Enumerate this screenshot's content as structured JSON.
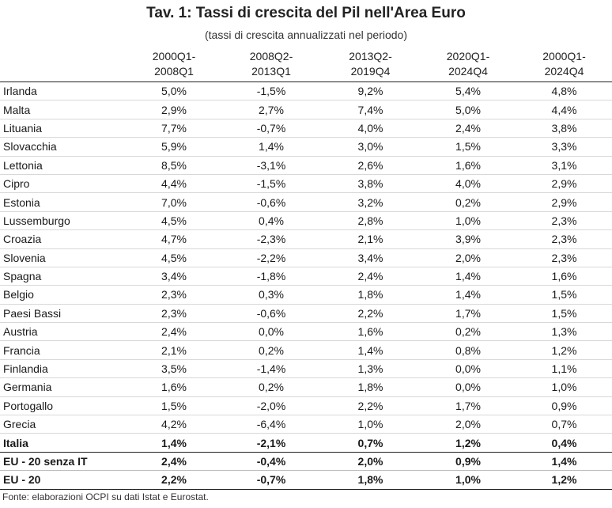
{
  "title": "Tav. 1: Tassi di crescita del Pil nell'Area Euro",
  "subtitle": "(tassi di crescita annualizzati nel periodo)",
  "columns": [
    "",
    "2000Q1-\n2008Q1",
    "2008Q2-\n2013Q1",
    "2013Q2-\n2019Q4",
    "2020Q1-\n2024Q4",
    "2000Q1-\n2024Q4"
  ],
  "rows": [
    {
      "country": "Irlanda",
      "values": [
        "5,0%",
        "-1,5%",
        "9,2%",
        "5,4%",
        "4,8%"
      ]
    },
    {
      "country": "Malta",
      "values": [
        "2,9%",
        "2,7%",
        "7,4%",
        "5,0%",
        "4,4%"
      ]
    },
    {
      "country": "Lituania",
      "values": [
        "7,7%",
        "-0,7%",
        "4,0%",
        "2,4%",
        "3,8%"
      ]
    },
    {
      "country": "Slovacchia",
      "values": [
        "5,9%",
        "1,4%",
        "3,0%",
        "1,5%",
        "3,3%"
      ]
    },
    {
      "country": "Lettonia",
      "values": [
        "8,5%",
        "-3,1%",
        "2,6%",
        "1,6%",
        "3,1%"
      ]
    },
    {
      "country": "Cipro",
      "values": [
        "4,4%",
        "-1,5%",
        "3,8%",
        "4,0%",
        "2,9%"
      ]
    },
    {
      "country": "Estonia",
      "values": [
        "7,0%",
        "-0,6%",
        "3,2%",
        "0,2%",
        "2,9%"
      ]
    },
    {
      "country": "Lussemburgo",
      "values": [
        "4,5%",
        "0,4%",
        "2,8%",
        "1,0%",
        "2,3%"
      ]
    },
    {
      "country": "Croazia",
      "values": [
        "4,7%",
        "-2,3%",
        "2,1%",
        "3,9%",
        "2,3%"
      ]
    },
    {
      "country": "Slovenia",
      "values": [
        "4,5%",
        "-2,2%",
        "3,4%",
        "2,0%",
        "2,3%"
      ]
    },
    {
      "country": "Spagna",
      "values": [
        "3,4%",
        "-1,8%",
        "2,4%",
        "1,4%",
        "1,6%"
      ]
    },
    {
      "country": "Belgio",
      "values": [
        "2,3%",
        "0,3%",
        "1,8%",
        "1,4%",
        "1,5%"
      ]
    },
    {
      "country": "Paesi Bassi",
      "values": [
        "2,3%",
        "-0,6%",
        "2,2%",
        "1,7%",
        "1,5%"
      ]
    },
    {
      "country": "Austria",
      "values": [
        "2,4%",
        "0,0%",
        "1,6%",
        "0,2%",
        "1,3%"
      ]
    },
    {
      "country": "Francia",
      "values": [
        "2,1%",
        "0,2%",
        "1,4%",
        "0,8%",
        "1,2%"
      ]
    },
    {
      "country": "Finlandia",
      "values": [
        "3,5%",
        "-1,4%",
        "1,3%",
        "0,0%",
        "1,1%"
      ]
    },
    {
      "country": "Germania",
      "values": [
        "1,6%",
        "0,2%",
        "1,8%",
        "0,0%",
        "1,0%"
      ]
    },
    {
      "country": "Portogallo",
      "values": [
        "1,5%",
        "-2,0%",
        "2,2%",
        "1,7%",
        "0,9%"
      ]
    },
    {
      "country": "Grecia",
      "values": [
        "4,2%",
        "-6,4%",
        "1,0%",
        "2,0%",
        "0,7%"
      ]
    },
    {
      "country": "Italia",
      "values": [
        "1,4%",
        "-2,1%",
        "0,7%",
        "1,2%",
        "0,4%"
      ],
      "style": "italia"
    },
    {
      "country": "EU - 20 senza IT",
      "values": [
        "2,4%",
        "-0,4%",
        "2,0%",
        "0,9%",
        "1,4%"
      ],
      "style": "agg"
    },
    {
      "country": "EU - 20",
      "values": [
        "2,2%",
        "-0,7%",
        "1,8%",
        "1,0%",
        "1,2%"
      ],
      "style": "last"
    }
  ],
  "source": "Fonte: elaborazioni OCPI su dati Istat e Eurostat."
}
